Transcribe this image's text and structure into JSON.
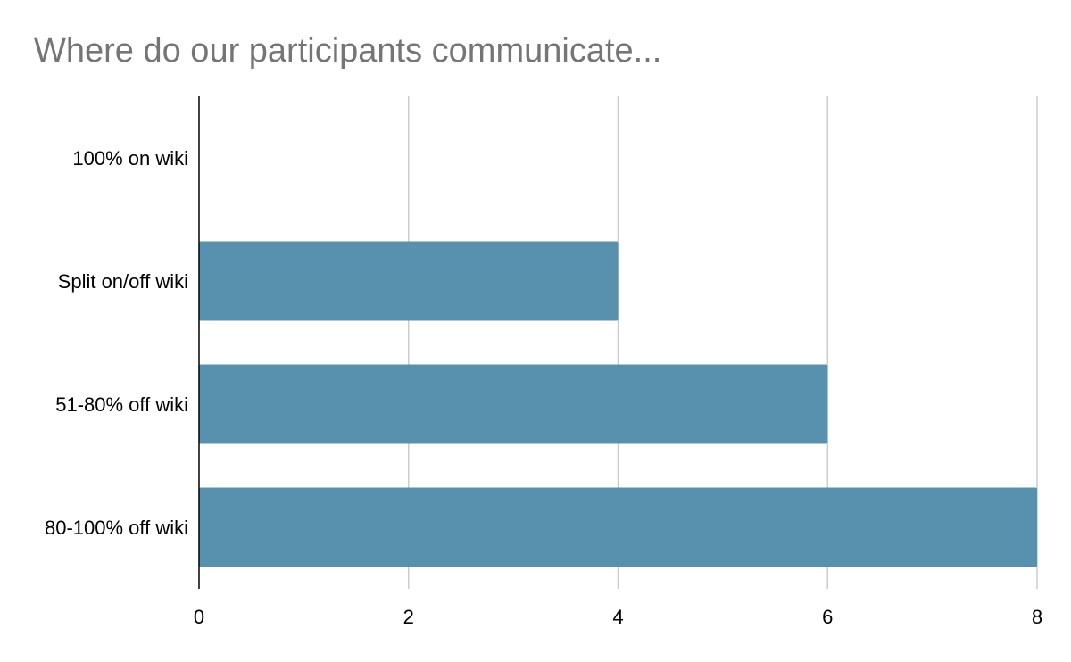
{
  "chart_data": {
    "type": "bar",
    "orientation": "horizontal",
    "title": "Where do our participants communicate...",
    "categories": [
      "100% on wiki",
      "Split on/off wiki",
      "51-80% off wiki",
      "80-100% off wiki"
    ],
    "values": [
      0,
      4,
      6,
      8
    ],
    "xlabel": "",
    "ylabel": "",
    "xlim": [
      0,
      8
    ],
    "xticks": [
      0,
      2,
      4,
      6,
      8
    ],
    "grid": true,
    "legend": "none",
    "bar_color": "#5891ad",
    "grid_color": "#cccccc",
    "axis_color": "#000000",
    "title_color": "#757575"
  }
}
